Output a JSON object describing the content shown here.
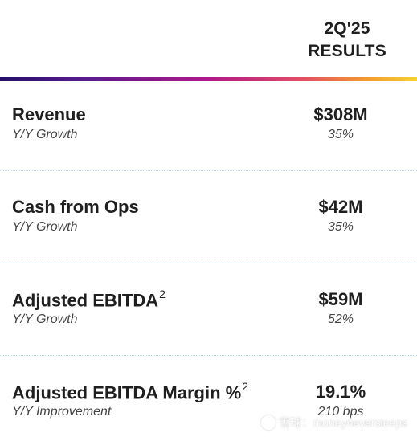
{
  "header": {
    "period": "2Q'25",
    "label": "RESULTS"
  },
  "metrics": [
    {
      "title": "Revenue",
      "footnote": "",
      "subtitle": "Y/Y Growth",
      "value": "$308M",
      "change": "35%"
    },
    {
      "title": "Cash from Ops",
      "footnote": "",
      "subtitle": "Y/Y Growth",
      "value": "$42M",
      "change": "35%"
    },
    {
      "title": "Adjusted EBITDA",
      "footnote": "2",
      "subtitle": "Y/Y Growth",
      "value": "$59M",
      "change": "52%"
    },
    {
      "title": "Adjusted EBITDA Margin %",
      "footnote": "2",
      "subtitle": "Y/Y Improvement",
      "value": "19.1%",
      "change": "210 bps"
    }
  ],
  "watermark": {
    "icon": "snowball-logo-icon",
    "text": "雪球：moneyneversleeps"
  },
  "colors": {
    "gradient": [
      "#24106a",
      "#5a1b8f",
      "#b0188b",
      "#e24c66",
      "#f39a2e",
      "#f6d233"
    ],
    "divider": "#b9dce6",
    "text": "#1f1f1f"
  }
}
